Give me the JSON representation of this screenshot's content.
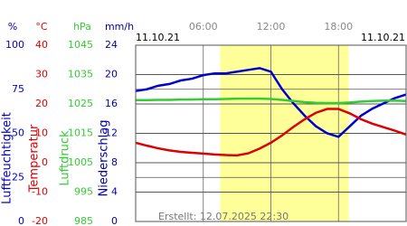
{
  "chart_data": {
    "type": "line",
    "date_left": "11.10.21",
    "date_right": "11.10.21",
    "footer": "Erstellt: 12.07.2025 22:30",
    "xlim": [
      0,
      24
    ],
    "xticks": [
      {
        "value": 6,
        "label": "06:00"
      },
      {
        "value": 12,
        "label": "12:00"
      },
      {
        "value": 18,
        "label": "18:00"
      }
    ],
    "daylight": [
      7.5,
      18.9
    ],
    "grid": true,
    "axes": [
      {
        "unit": "%",
        "label": "Luftfeuchtigkeit",
        "color": "#0000cc",
        "ylim": [
          0,
          100
        ],
        "yticks": [
          0,
          25,
          50,
          75,
          100
        ]
      },
      {
        "unit": "°C",
        "label": "Temperatur",
        "color": "#dd0000",
        "ylim": [
          -20,
          40
        ],
        "yticks": [
          -20,
          -10,
          0,
          10,
          20,
          30,
          40
        ]
      },
      {
        "unit": "hPa",
        "label": "Luftdruck",
        "color": "#33cc33",
        "ylim": [
          985,
          1045
        ],
        "yticks": [
          985,
          995,
          1005,
          1015,
          1025,
          1035,
          1045
        ]
      },
      {
        "unit": "mm/h",
        "label": "Niederschlag",
        "color": "#0000aa",
        "ylim": [
          0,
          24
        ],
        "yticks": [
          0,
          4,
          8,
          12,
          16,
          20,
          24
        ]
      }
    ],
    "x": [
      0,
      1,
      2,
      3,
      4,
      5,
      6,
      7,
      8,
      9,
      10,
      11,
      12,
      13,
      14,
      15,
      16,
      17,
      18,
      19,
      20,
      21,
      22,
      23,
      24
    ],
    "series": [
      {
        "name": "Luftfeuchtigkeit",
        "axis": 0,
        "color": "#0000cc",
        "values": [
          74,
          75,
          77,
          78,
          80,
          81,
          83,
          84,
          84,
          85,
          86,
          87,
          85,
          75,
          67,
          60,
          54,
          50,
          48,
          54,
          60,
          64,
          67,
          70,
          72
        ]
      },
      {
        "name": "Temperatur",
        "axis": 1,
        "color": "#dd0000",
        "values": [
          6.8,
          5.8,
          4.9,
          4.2,
          3.7,
          3.4,
          3.1,
          2.8,
          2.6,
          2.5,
          3.2,
          4.8,
          6.8,
          9.3,
          12.2,
          14.8,
          17.0,
          18.3,
          18.3,
          16.8,
          14.8,
          13.3,
          12.1,
          10.9,
          9.6
        ]
      },
      {
        "name": "Luftdruck",
        "axis": 2,
        "color": "#33cc33",
        "values": [
          1026.3,
          1026.3,
          1026.4,
          1026.4,
          1026.5,
          1026.5,
          1026.6,
          1026.6,
          1026.7,
          1026.8,
          1026.8,
          1026.8,
          1026.7,
          1026.4,
          1026.0,
          1025.6,
          1025.4,
          1025.3,
          1025.3,
          1025.5,
          1025.8,
          1026.0,
          1026.1,
          1026.1,
          1026.0
        ]
      }
    ]
  }
}
